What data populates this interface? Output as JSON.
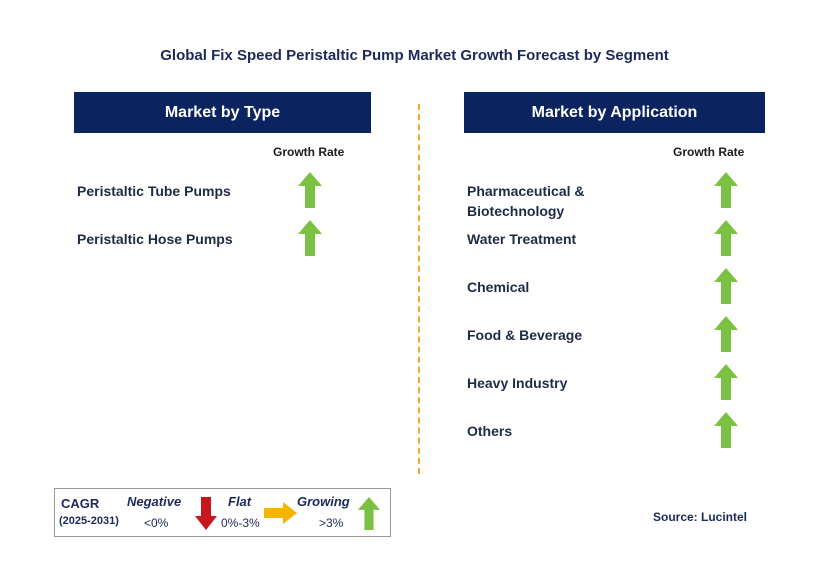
{
  "title": "Global Fix Speed Peristaltic Pump Market Growth Forecast by Segment",
  "left_panel": {
    "header": "Market by Type",
    "column_label": "Growth Rate",
    "rows": [
      {
        "label": "Peristaltic Tube Pumps",
        "trend": "growing"
      },
      {
        "label": "Peristaltic Hose Pumps",
        "trend": "growing"
      }
    ]
  },
  "right_panel": {
    "header": "Market by Application",
    "column_label": "Growth Rate",
    "rows": [
      {
        "label_line1": "Pharmaceutical &",
        "label_line2": "Biotechnology",
        "trend": "growing"
      },
      {
        "label": "Water Treatment",
        "trend": "growing"
      },
      {
        "label": "Chemical",
        "trend": "growing"
      },
      {
        "label": "Food & Beverage",
        "trend": "growing"
      },
      {
        "label": "Heavy Industry",
        "trend": "growing"
      },
      {
        "label": "Others",
        "trend": "growing"
      }
    ]
  },
  "legend": {
    "cagr_label": "CAGR",
    "period": "(2025-2031)",
    "negative_label": "Negative",
    "negative_value": "<0%",
    "flat_label": "Flat",
    "flat_value": "0%-3%",
    "growing_label": "Growing",
    "growing_value": ">3%"
  },
  "source": "Source: Lucintel",
  "colors": {
    "header_bg": "#0b2460",
    "growing": "#7ac143",
    "negative": "#c8161d",
    "flat": "#f5b400",
    "divider": "#f0a830"
  }
}
